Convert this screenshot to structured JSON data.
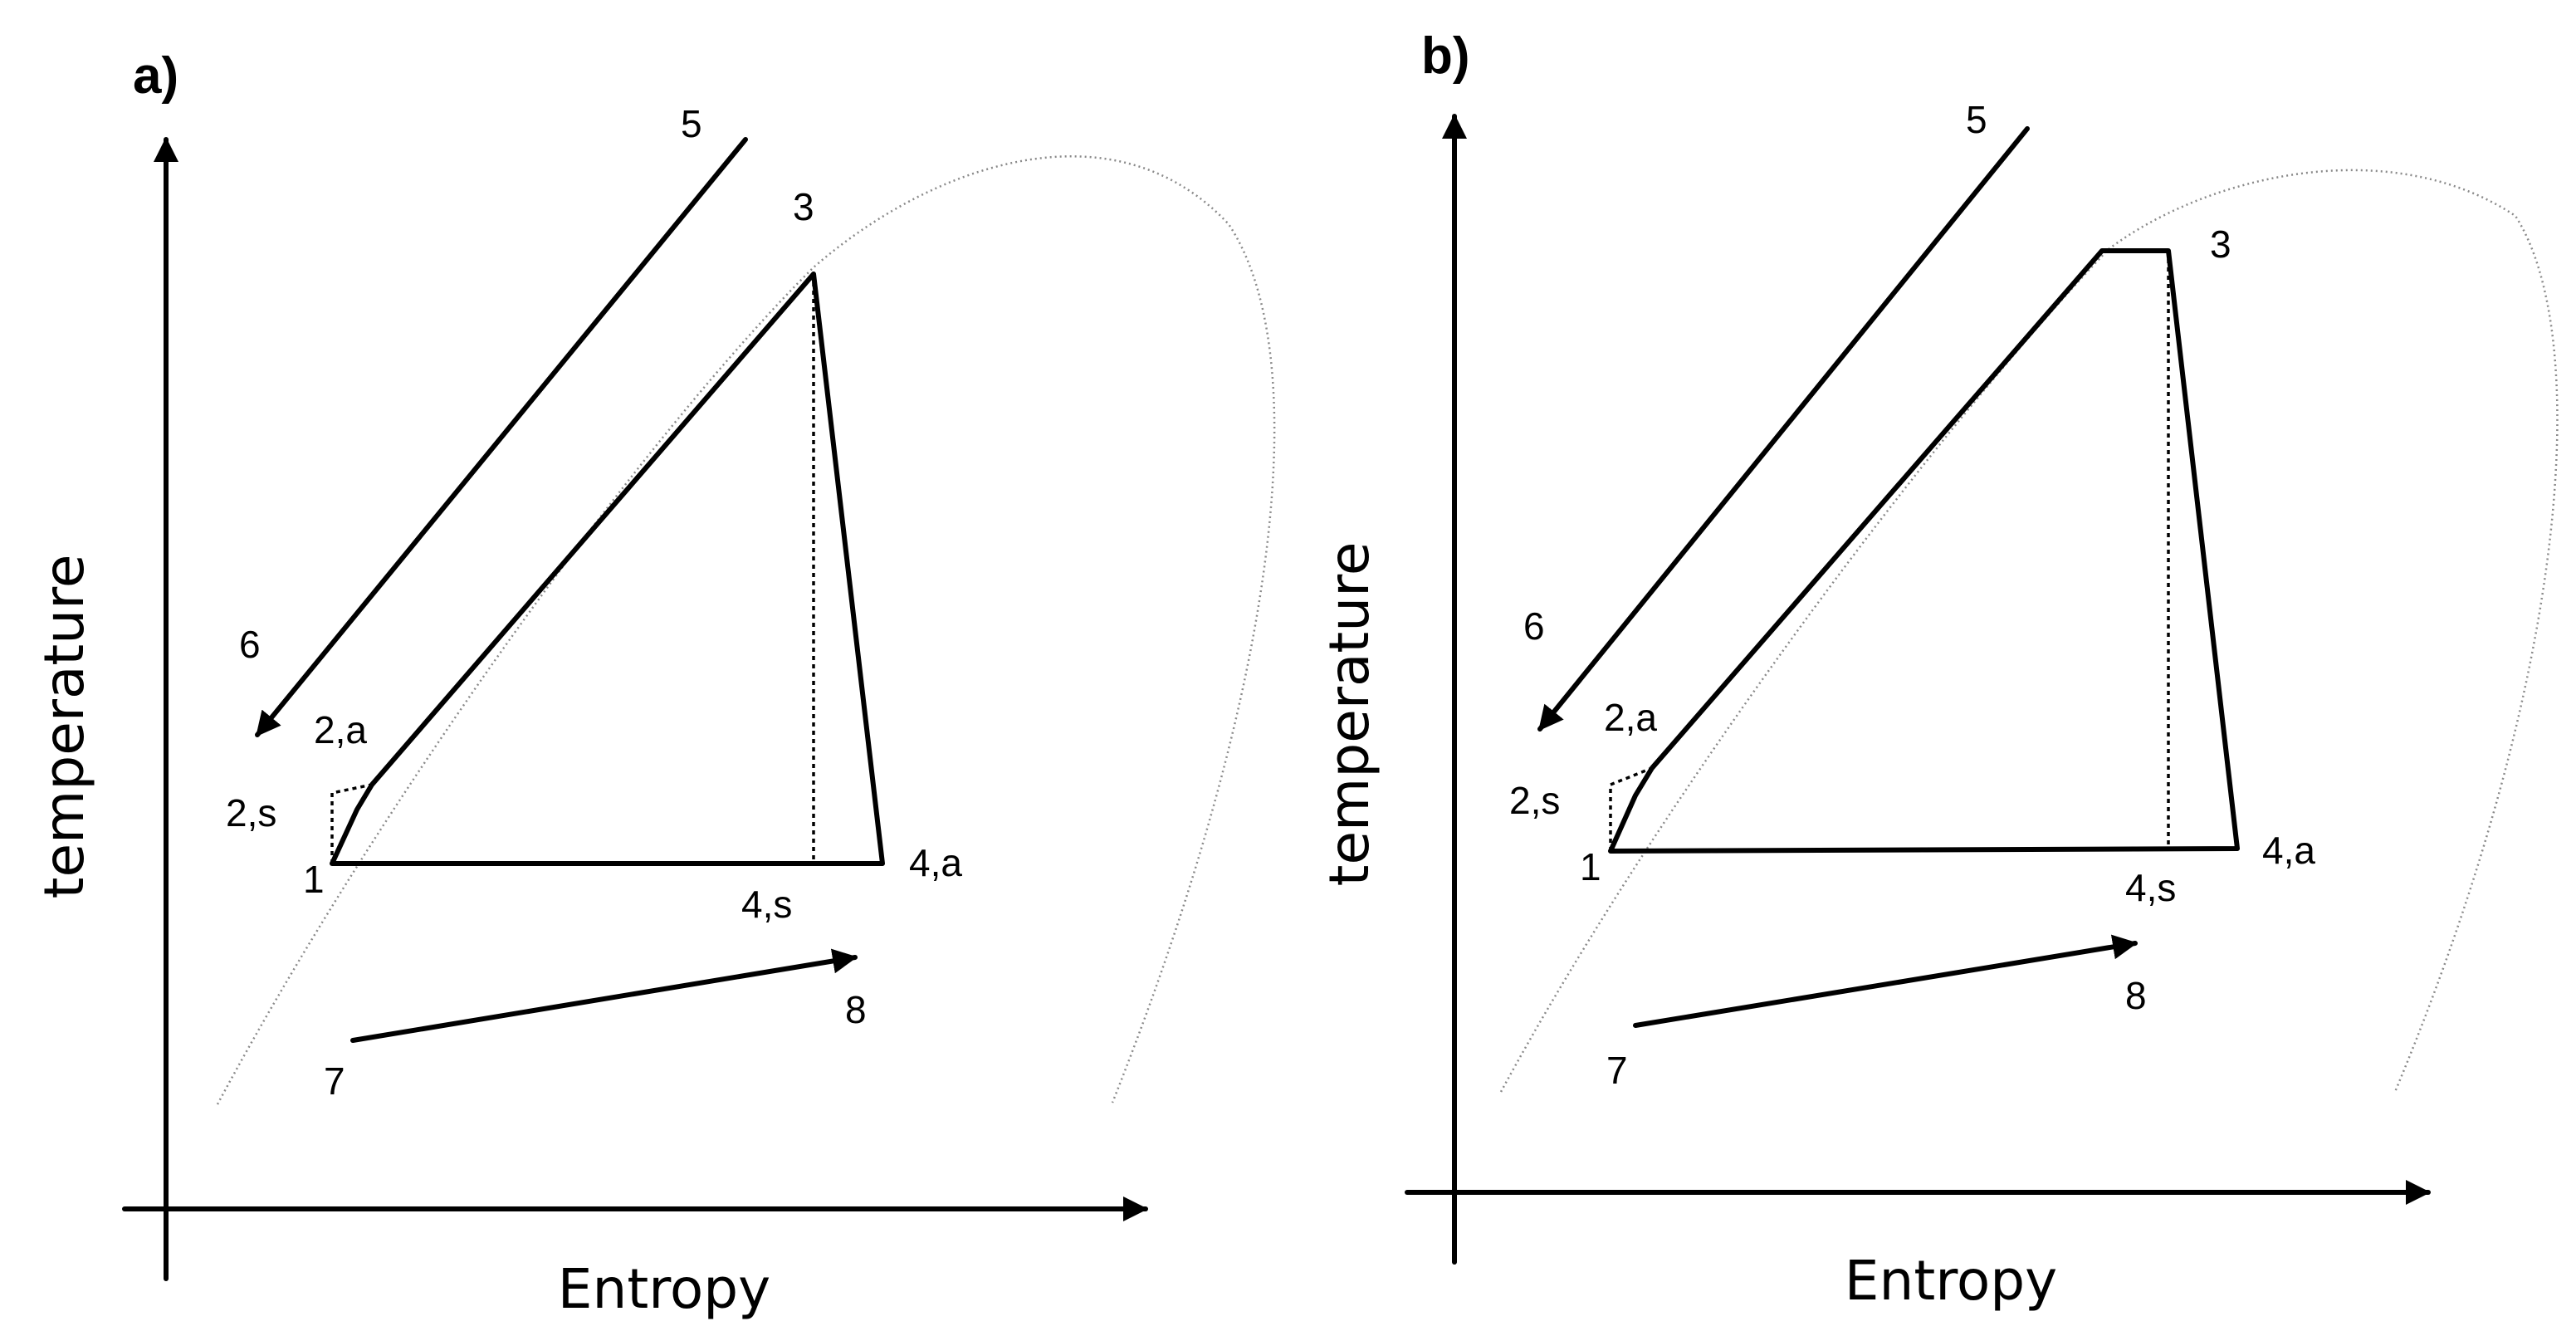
{
  "panels": [
    {
      "id": "a",
      "letter": "a)",
      "y_axis_label": "temperature",
      "x_axis_label": "Entropy",
      "points": {
        "p1": "1",
        "p2s": "2,s",
        "p2a": "2,a",
        "p3": "3",
        "p4s": "4,s",
        "p4a": "4,a",
        "p5": "5",
        "p6": "6",
        "p7": "7",
        "p8": "8"
      }
    },
    {
      "id": "b",
      "letter": "b)",
      "y_axis_label": "temperature",
      "x_axis_label": "Entropy",
      "points": {
        "p1": "1",
        "p2s": "2,s",
        "p2a": "2,a",
        "p3": "3",
        "p4s": "4,s",
        "p4a": "4,a",
        "p5": "5",
        "p6": "6",
        "p7": "7",
        "p8": "8"
      }
    }
  ]
}
